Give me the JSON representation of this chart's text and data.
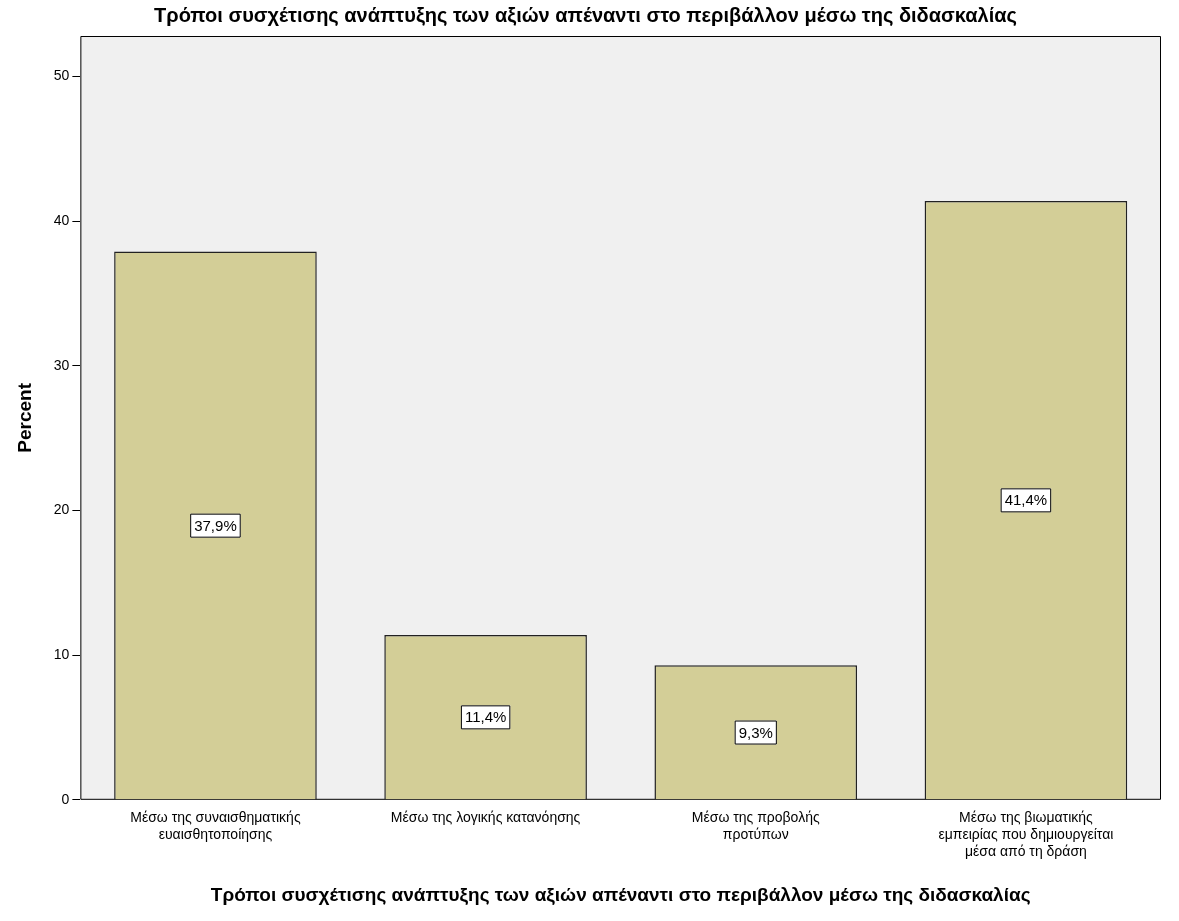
{
  "chart_data": {
    "type": "bar",
    "title": "Τρόποι συσχέτισης ανάπτυξης των αξιών απέναντι στο περιβάλλον μέσω της διδασκαλίας",
    "xlabel": "Τρόποι συσχέτισης ανάπτυξης των αξιών απέναντι στο περιβάλλον μέσω της διδασκαλίας",
    "ylabel": "Percent",
    "categories": [
      "Μέσω της συναισθηματικής ευαισθητοποίησης",
      "Μέσω της λογικής κατανόησης",
      "Μέσω της προβολής προτύπων",
      "Μέσω της βιωματικής εμπειρίας που δημιουργείται μέσα από τη δράση"
    ],
    "values": [
      37.9,
      11.4,
      9.3,
      41.4
    ],
    "value_labels": [
      "37,9%",
      "11,4%",
      "9,3%",
      "41,4%"
    ],
    "color": "#d3ce97",
    "ylim": [
      0,
      52.8
    ],
    "yticks": [
      0,
      10,
      20,
      30,
      40,
      50
    ],
    "grid": false,
    "legend": false
  }
}
